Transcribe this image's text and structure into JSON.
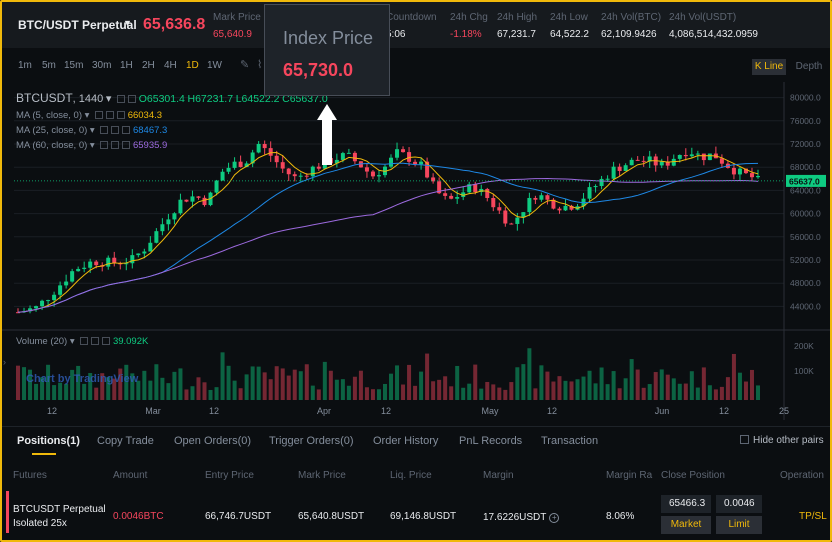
{
  "header": {
    "symbol": "BTC/USDT Perpetual",
    "last_price": "65,636.8",
    "stats": [
      {
        "label": "Mark Price",
        "value": "65,640.9",
        "red": true
      },
      {
        "label": "Countdown",
        "value": "5:06",
        "red": false
      },
      {
        "label": "24h Chg",
        "value": "-1.18%",
        "red": true
      },
      {
        "label": "24h High",
        "value": "67,231.7",
        "red": false
      },
      {
        "label": "24h Low",
        "value": "64,522.2",
        "red": false
      },
      {
        "label": "24h Vol(BTC)",
        "value": "62,109.9426",
        "red": false
      },
      {
        "label": "24h Vol(USDT)",
        "value": "4,086,514,432.0959",
        "red": false
      }
    ]
  },
  "toolbar": {
    "timeframes": [
      "1m",
      "5m",
      "15m",
      "30m",
      "1H",
      "2H",
      "4H",
      "1D",
      "1W"
    ],
    "active_timeframe": "1D",
    "kline_label": "K Line",
    "depth_label": "Depth"
  },
  "legend": {
    "symbol": "BTCUSDT",
    "interval": "1440",
    "open": "O65301.4",
    "high": "H67231.7",
    "low": "L64522.2",
    "close": "C65637.0",
    "ma": [
      {
        "label": "MA (5, close, 0)",
        "value": "66034.3",
        "color": "#f0b90b"
      },
      {
        "label": "MA (25, close, 0)",
        "value": "68467.3",
        "color": "#1e88e5"
      },
      {
        "label": "MA (60, close, 0)",
        "value": "65935.9",
        "color": "#9c6ade"
      }
    ],
    "volume_label": "Volume (20)",
    "volume_value": "39.092K"
  },
  "watermark": "Chart by TradingView",
  "tooltip": {
    "title": "Index Price",
    "value": "65,730.0"
  },
  "chart_data": {
    "type": "candlestick",
    "y_ticks": [
      "80000.0",
      "76000.0",
      "72000.0",
      "68000.0",
      "64000.0",
      "60000.0",
      "56000.0",
      "52000.0",
      "48000.0",
      "44000.0"
    ],
    "current_price_tag": "65637.0",
    "current_price": 65637,
    "ylim": [
      42000,
      82000
    ],
    "x_ticks": [
      "12",
      "Mar",
      "12",
      "Apr",
      "12",
      "May",
      "12",
      "Jun",
      "12",
      "25"
    ],
    "volume_ticks": [
      "200K",
      "100K"
    ],
    "colors": {
      "up": "#0ecb81",
      "down": "#f6465d"
    }
  },
  "positions": {
    "tabs": [
      "Positions(1)",
      "Copy Trade",
      "Open Orders(0)",
      "Trigger Orders(0)",
      "Order History",
      "PnL Records",
      "Transaction"
    ],
    "hide_other_pairs": "Hide other pairs",
    "columns": [
      "Futures",
      "Amount",
      "Entry Price",
      "Mark Price",
      "Liq. Price",
      "Margin",
      "Margin Ra",
      "Close Position",
      "Operation"
    ],
    "row": {
      "contract": "BTCUSDT Perpetual",
      "mode": "Isolated 25x",
      "amount": "0.0046BTC",
      "entry_price": "66,746.7USDT",
      "mark_price": "65,640.8USDT",
      "liq_price": "69,146.8USDT",
      "margin": "17.6226USDT",
      "margin_ratio": "8.06%",
      "close_price_input": "65466.3",
      "close_amount_input": "0.0046",
      "market_label": "Market",
      "limit_label": "Limit",
      "operation": "TP/SL"
    }
  }
}
